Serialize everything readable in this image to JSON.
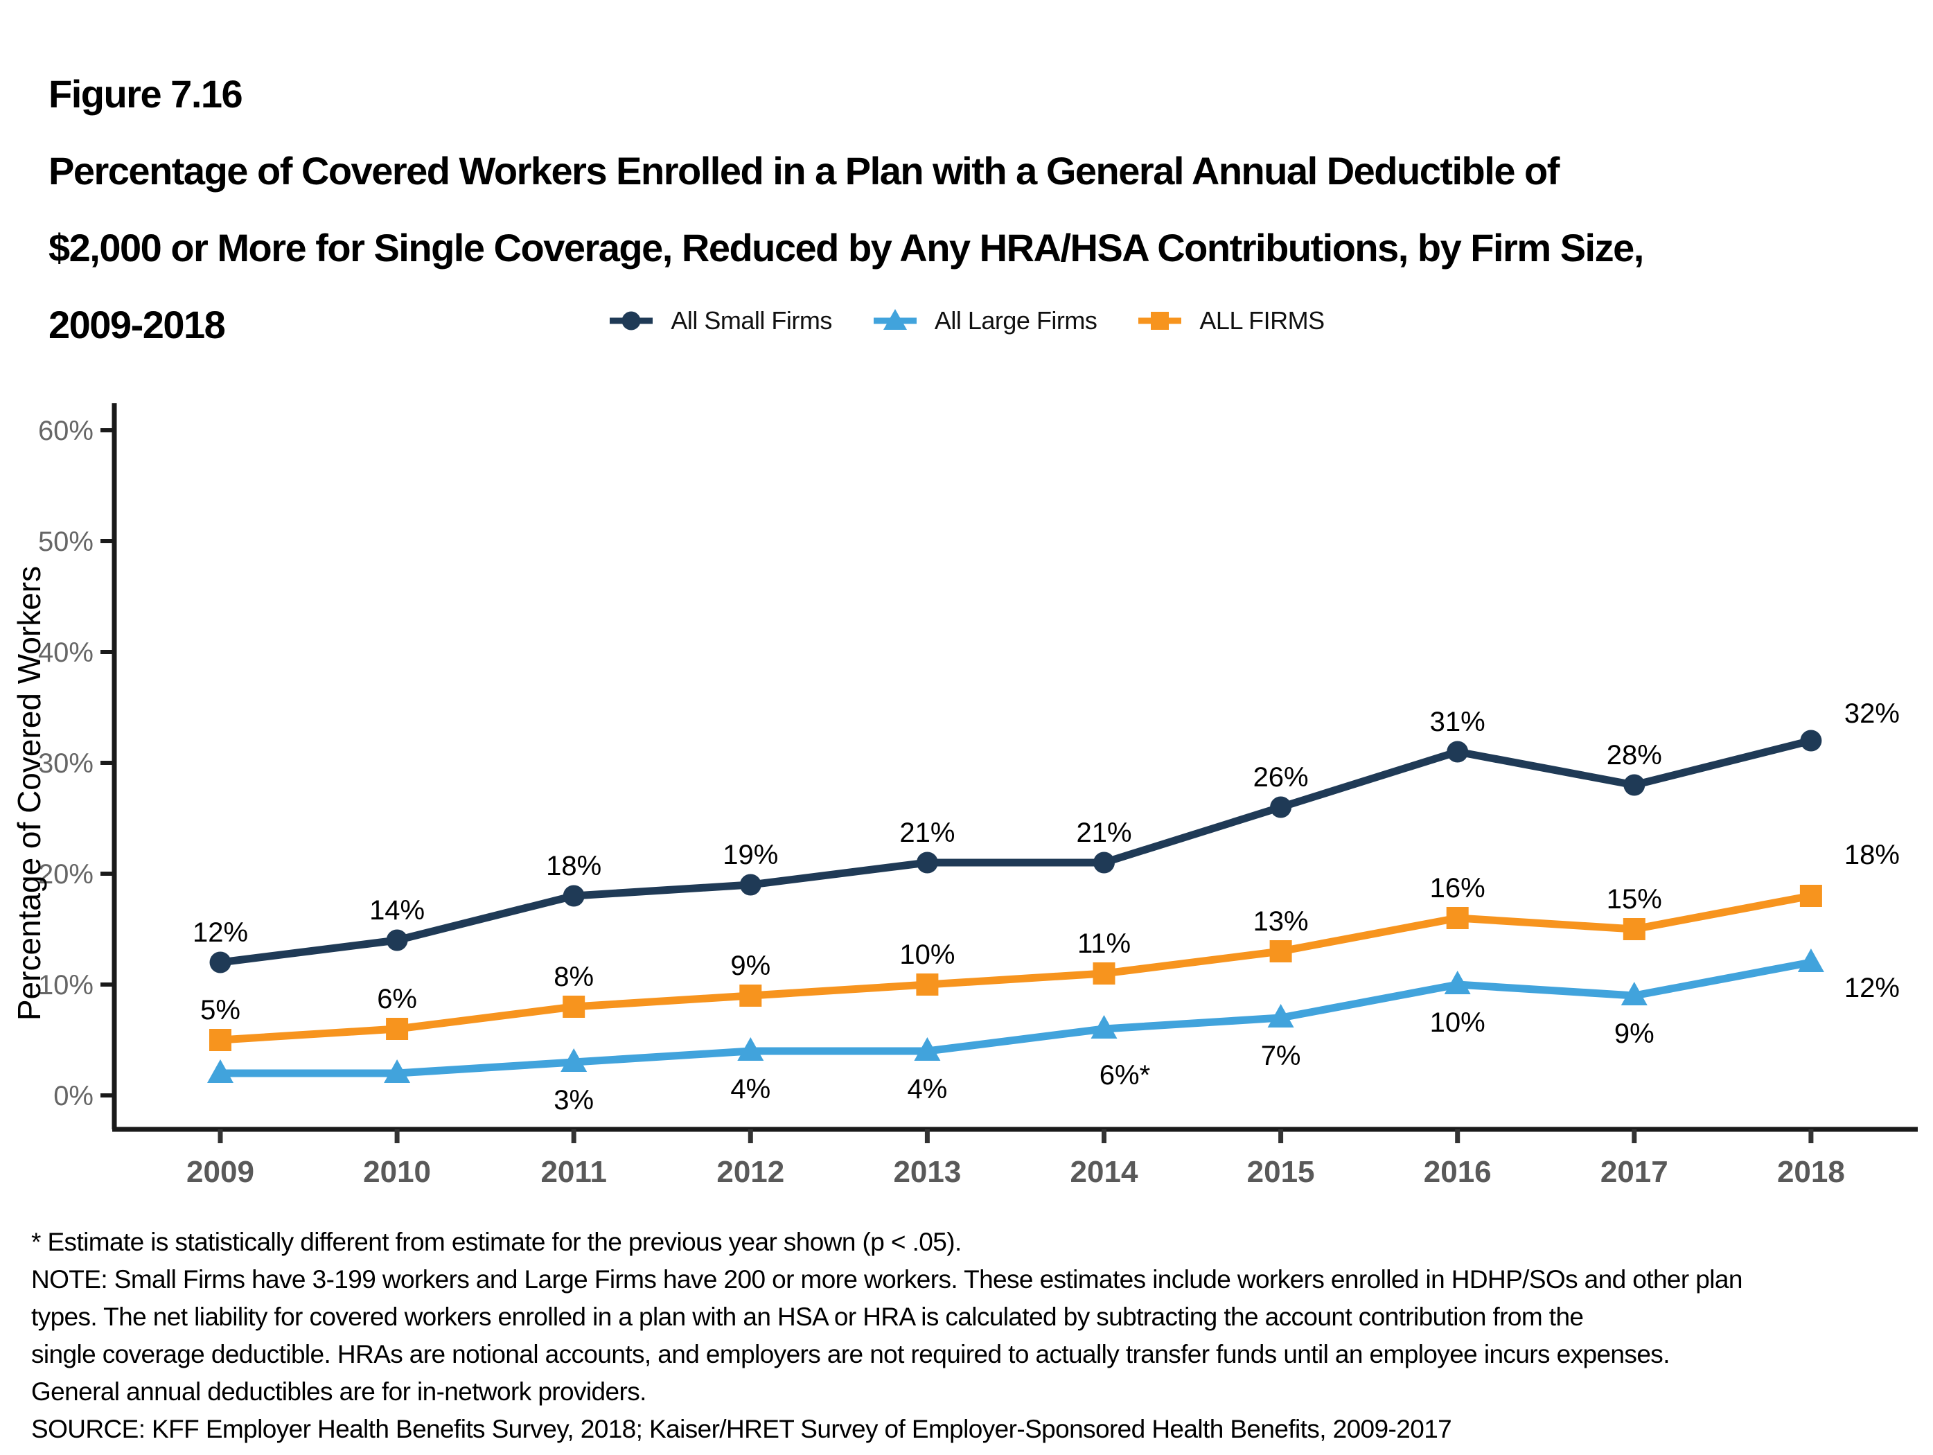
{
  "title": {
    "figure_label": "Figure 7.16",
    "lines": [
      "Percentage of Covered Workers Enrolled in a Plan with a General Annual Deductible of",
      "$2,000 or More for Single Coverage, Reduced by Any HRA/HSA Contributions, by Firm Size,",
      "2009-2018"
    ]
  },
  "legend": {
    "items": [
      {
        "label": "All Small Firms",
        "marker": "circle",
        "color": "#1F3A56"
      },
      {
        "label": "All Large Firms",
        "marker": "triangle",
        "color": "#41A3DC"
      },
      {
        "label": "ALL FIRMS",
        "marker": "square",
        "color": "#F7941E"
      }
    ]
  },
  "chart_data": {
    "type": "line",
    "title": "Percentage of Covered Workers Enrolled in a Plan with a General Annual Deductible of $2,000 or More for Single Coverage, Reduced by Any HRA/HSA Contributions, by Firm Size, 2009-2018",
    "x": [
      2009,
      2010,
      2011,
      2012,
      2013,
      2014,
      2015,
      2016,
      2017,
      2018
    ],
    "series": [
      {
        "name": "All Small Firms",
        "marker": "circle",
        "color": "#1F3A56",
        "values": [
          12,
          14,
          18,
          19,
          21,
          21,
          26,
          31,
          28,
          32
        ],
        "labels": [
          "12%",
          "14%",
          "18%",
          "19%",
          "21%",
          "21%",
          "26%",
          "31%",
          "28%",
          "32%"
        ],
        "label_side": "above"
      },
      {
        "name": "ALL FIRMS",
        "marker": "square",
        "color": "#F7941E",
        "values": [
          5,
          6,
          8,
          9,
          10,
          11,
          13,
          16,
          15,
          18
        ],
        "labels": [
          "5%",
          "6%",
          "8%",
          "9%",
          "10%",
          "11%",
          "13%",
          "16%",
          "15%",
          "18%"
        ],
        "label_side": "above"
      },
      {
        "name": "All Large Firms",
        "marker": "triangle",
        "color": "#41A3DC",
        "values": [
          2,
          2,
          3,
          4,
          4,
          6,
          7,
          10,
          9,
          12
        ],
        "labels": [
          "",
          "",
          "3%",
          "4%",
          "4%",
          "6%*",
          "7%",
          "10%",
          "9%",
          "12%"
        ],
        "label_side": "below"
      }
    ],
    "ylabel": "Percentage of Covered Workers",
    "xlabel": "",
    "y_ticks": [
      "0%",
      "10%",
      "20%",
      "30%",
      "40%",
      "50%",
      "60%"
    ],
    "y_tick_values": [
      0,
      10,
      20,
      30,
      40,
      50,
      60
    ],
    "ylim": [
      0,
      63
    ],
    "grid": false,
    "legend_position": "top-center"
  },
  "colors": {
    "axis": "#1a1a1a",
    "x_tick_label": "#595959",
    "y_tick_label": "#666666",
    "data_label": "#000000"
  },
  "footnotes": [
    "* Estimate is statistically different from estimate for the previous year shown (p < .05).",
    "NOTE: Small Firms have 3-199 workers and Large Firms have 200 or more workers. These estimates include workers enrolled in HDHP/SOs and other plan",
    "types. The net liability for covered workers enrolled in a plan with an HSA or HRA is calculated by subtracting the account contribution from the",
    "single coverage deductible. HRAs are notional accounts, and employers are not required to actually transfer funds until an employee incurs expenses.",
    "General annual deductibles are for in-network providers.",
    "SOURCE: KFF Employer Health Benefits Survey, 2018; Kaiser/HRET Survey of Employer-Sponsored Health Benefits, 2009-2017"
  ]
}
